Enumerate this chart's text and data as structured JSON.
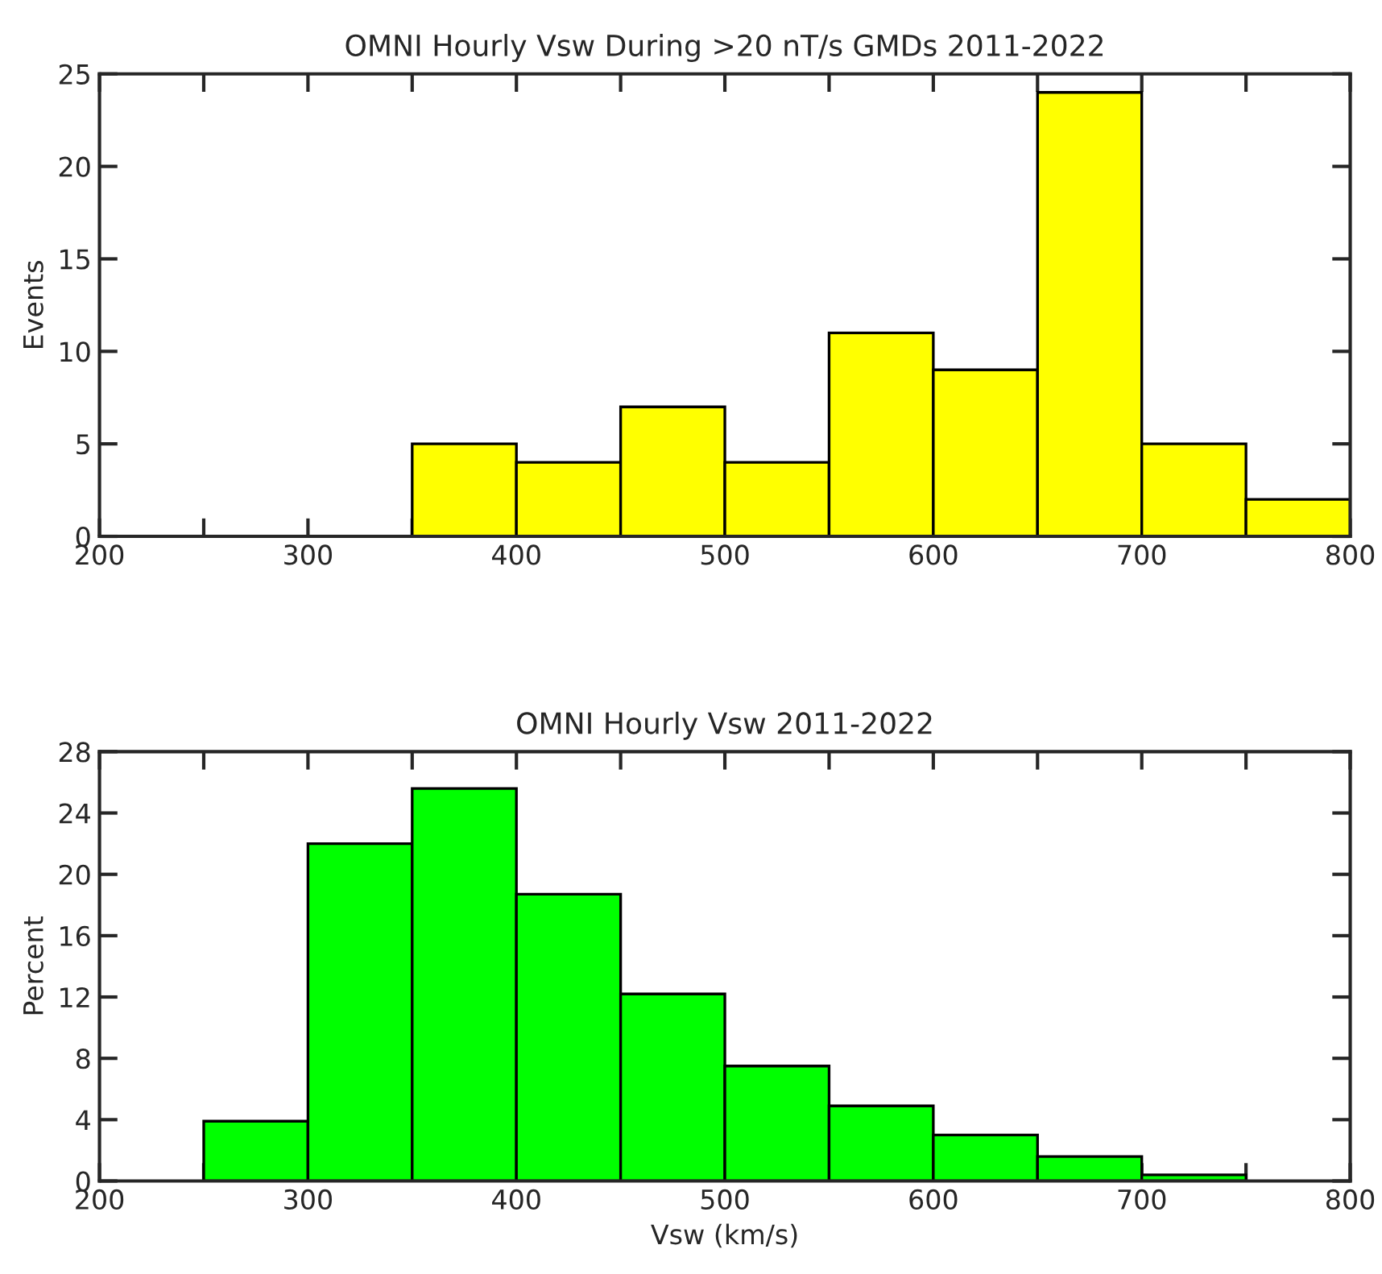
{
  "chart_data": [
    {
      "type": "histogram",
      "title": "OMNI Hourly Vsw During >20 nT/s GMDs 2011-2022",
      "ylabel": "Events",
      "color": "#ffff00",
      "bins": [
        200,
        250,
        300,
        350,
        400,
        450,
        500,
        550,
        600,
        650,
        700,
        750,
        800
      ],
      "values": [
        0,
        0,
        0,
        5,
        4,
        7,
        4,
        11,
        9,
        24,
        5,
        2
      ],
      "xlim": [
        200,
        800
      ],
      "xticks": [
        200,
        {
          "value": 250,
          "label": null
        },
        300,
        {
          "value": 350,
          "label": null
        },
        400,
        {
          "value": 450,
          "label": null
        },
        500,
        {
          "value": 550,
          "label": null
        },
        600,
        {
          "value": 650,
          "label": null
        },
        700,
        {
          "value": 750,
          "label": null
        },
        800
      ],
      "ylim": [
        0,
        25
      ],
      "yticks": [
        0,
        5,
        10,
        15,
        20,
        25
      ],
      "grid": false
    },
    {
      "type": "histogram",
      "title": "OMNI Hourly Vsw 2011-2022",
      "ylabel": "Percent",
      "xlabel": "Vsw (km/s)",
      "color": "#00ff00",
      "bins": [
        200,
        250,
        300,
        350,
        400,
        450,
        500,
        550,
        600,
        650,
        700,
        750,
        800
      ],
      "values": [
        0,
        3.9,
        22,
        25.6,
        18.7,
        12.2,
        7.5,
        4.9,
        3.0,
        1.6,
        0.4,
        null
      ],
      "xlim": [
        200,
        800
      ],
      "xticks": [
        200,
        {
          "value": 250,
          "label": null
        },
        300,
        {
          "value": 350,
          "label": null
        },
        400,
        {
          "value": 450,
          "label": null
        },
        500,
        {
          "value": 550,
          "label": null
        },
        600,
        {
          "value": 650,
          "label": null
        },
        700,
        {
          "value": 750,
          "label": null
        },
        800
      ],
      "ylim": [
        0,
        28
      ],
      "yticks": [
        0,
        4,
        8,
        12,
        16,
        20,
        24,
        28
      ],
      "grid": false
    }
  ]
}
